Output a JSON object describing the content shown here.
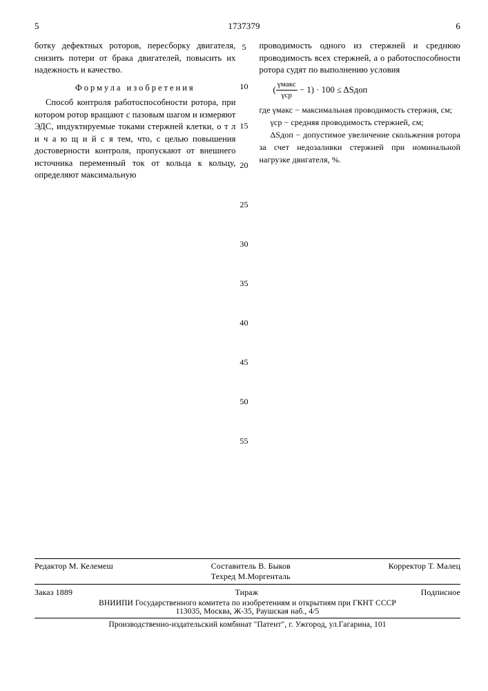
{
  "header": {
    "col_left_num": "5",
    "patent_number": "1737379",
    "col_right_num": "6"
  },
  "left_col": {
    "intro": "ботку дефектных роторов, пересборку двигателя, снизить потери от брака двигателей, повысить их надежность и качество.",
    "claim_title": "Формула изобретения",
    "claim_body": "Способ контроля работоспособности ротора, при котором ротор вращают с пазовым шагом и измеряют ЭДС, индуктируемые токами стержней клетки, о т л и ч а ю щ и й с я  тем, что, с целью повышения достоверности контроля, пропускают от внешнего источника переменный ток от кольца к кольцу, определяют максимальную"
  },
  "right_col": {
    "body": "проводимость одного из стержней и среднюю проводимость всех стержней, а о работоспособности ротора судят по выполнению условия",
    "formula": {
      "frac_num": "γмакс",
      "frac_den": "γср",
      "rest": " − 1) · 100 ≤ ΔSдоп"
    },
    "where1_label": "где  γмакс",
    "where1_text": " − максимальная проводимость стержня, см;",
    "where2_label": "γср",
    "where2_text": " − средняя проводимость стержней, см;",
    "where3_label": "ΔSдоп",
    "where3_text": " − допустимое увеличение скольжения ротора за счет недозаливки стержней при номинальной нагрузке двигателя, %."
  },
  "line_numbers": [
    "5",
    "10",
    "15",
    "20",
    "25",
    "30",
    "35",
    "40",
    "45",
    "50",
    "55"
  ],
  "footer": {
    "editor_label": "Редактор",
    "editor_name": "М. Келемеш",
    "compiler_label": "Составитель",
    "compiler_name": "В. Быков",
    "techred_label": "Техред",
    "techred_name": "М.Моргенталь",
    "corrector_label": "Корректор",
    "corrector_name": "Т. Малец",
    "order_label": "Заказ",
    "order_num": "1889",
    "tirazh_label": "Тираж",
    "subscribe_label": "Подписное",
    "org_line1": "ВНИИПИ Государственного комитета по изобретениям и открытиям при ГКНТ СССР",
    "org_line2": "113035, Москва, Ж-35, Раушская наб., 4/5",
    "printer": "Производственно-издательский комбинат \"Патент\", г. Ужгород, ул.Гагарина, 101"
  }
}
